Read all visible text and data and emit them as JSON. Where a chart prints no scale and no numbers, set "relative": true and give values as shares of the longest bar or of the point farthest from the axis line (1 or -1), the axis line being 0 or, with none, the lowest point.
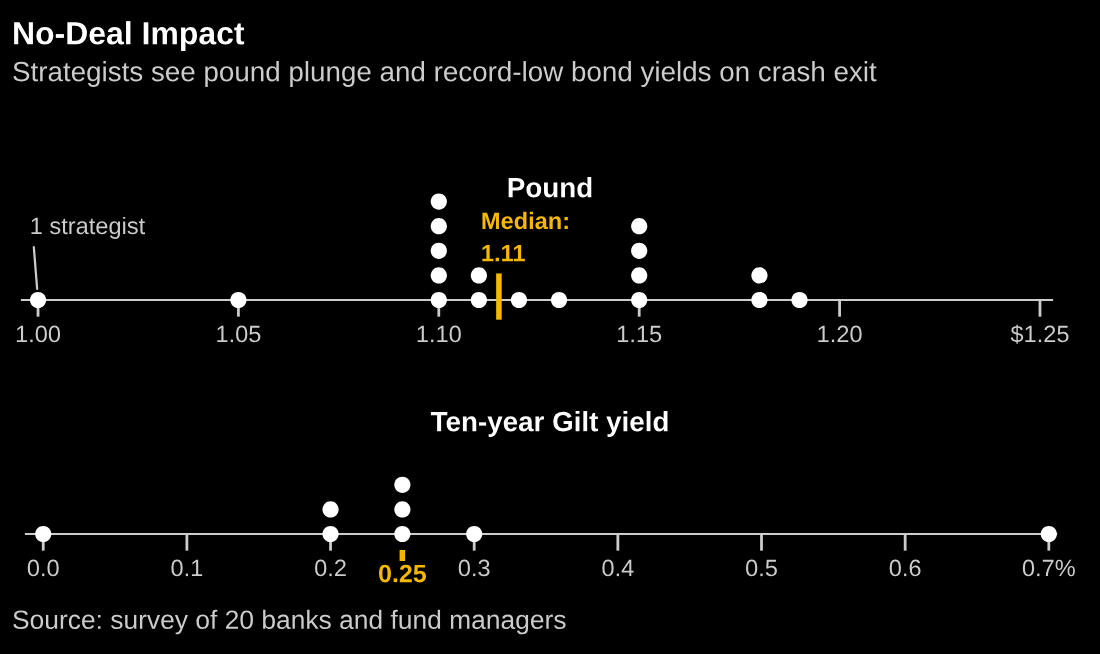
{
  "chart_data": [
    {
      "type": "scatter",
      "title": "No-Deal Impact",
      "subtitle": "Strategists see pound plunge and record-low bond yields on crash exit",
      "annotations": [
        "Pound",
        {
          "text": "1 strategist",
          "x": 1.0,
          "y": 0
        }
      ],
      "series": [
        {
          "color": "#ffffff",
          "x": [
            1.0,
            1.05,
            1.1,
            1.1,
            1.1,
            1.1,
            1.1,
            1.11,
            1.11,
            1.12,
            1.13,
            1.15,
            1.15,
            1.15,
            1.15,
            1.18,
            1.18,
            1.19
          ],
          "values": [
            0,
            0,
            0,
            0.25,
            0.5,
            0.75,
            1,
            0,
            0.25,
            0,
            0,
            0,
            0.25,
            0.5,
            0.75,
            0,
            0.25,
            0
          ]
        }
      ],
      "xlim": [
        0.996,
        1.253
      ],
      "xticks": [
        {
          "value": 1.0,
          "label": "1.00"
        },
        1.05,
        {
          "value": 1.1,
          "label": "1.10"
        },
        1.15,
        {
          "value": 1.2,
          "label": "1.20"
        },
        {
          "value": 1.25,
          "label": "$1.25"
        }
      ],
      "relative": true,
      "tick_labels": "x",
      "marker": "circle",
      "ref_lines": [
        {
          "axis": "x",
          "value": 1.115,
          "label": "Median:\n1.11",
          "color": "#f5b800",
          "line_style": "solid"
        }
      ]
    },
    {
      "type": "scatter",
      "annotations": [
        "Ten-year Gilt yield",
        "Source: survey of 20 banks and fund managers"
      ],
      "series": [
        {
          "color": "#ffffff",
          "x": [
            0.0,
            0.2,
            0.2,
            0.25,
            0.25,
            0.25,
            0.3,
            0.7
          ],
          "values": [
            0,
            0,
            0.5,
            0,
            0.5,
            1,
            0,
            0
          ]
        }
      ],
      "xlim": [
        -0.012,
        0.705
      ],
      "xticks": [
        {
          "value": 0.0,
          "label": "0.0"
        },
        0.1,
        0.2,
        0.3,
        0.4,
        0.5,
        0.6,
        {
          "value": 0.7,
          "label": "0.7%"
        }
      ],
      "relative": true,
      "tick_labels": "x",
      "marker": "circle",
      "ref_lines": [
        {
          "axis": "x",
          "value": 0.25,
          "label": "0.25",
          "color": "#f5b800",
          "line_style": "dashed"
        }
      ]
    }
  ]
}
